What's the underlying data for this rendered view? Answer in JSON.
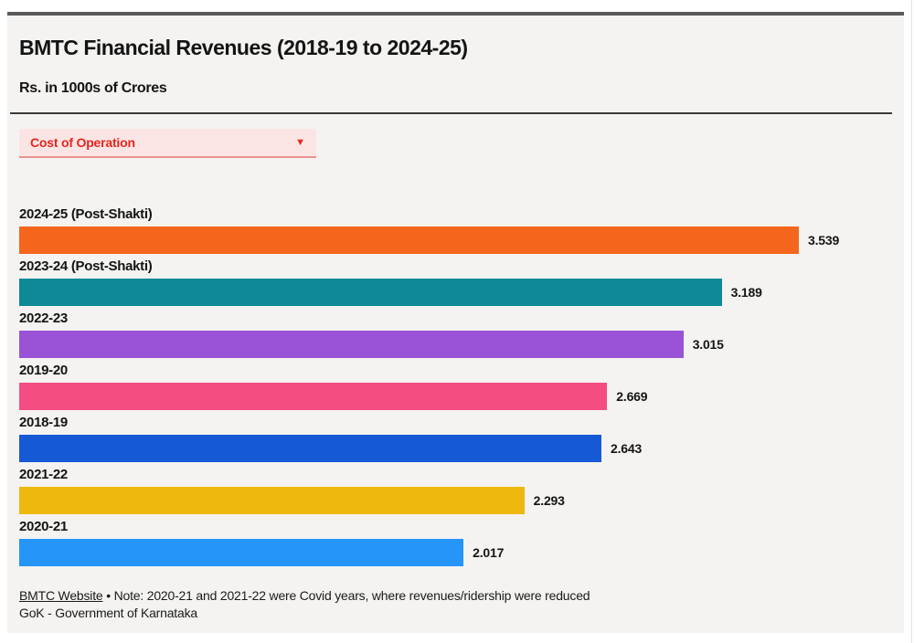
{
  "header": {
    "title": "BMTC Financial Revenues (2018-19 to 2024-25)",
    "subtitle": "Rs. in 1000s of Crores"
  },
  "dropdown": {
    "selected": "Cost of Operation",
    "accent_color": "#e8251f",
    "background_color": "#fbe5e4"
  },
  "chart_data": {
    "type": "bar",
    "orientation": "horizontal",
    "title": "BMTC Financial Revenues (2018-19 to 2024-25)",
    "subtitle": "Rs. in 1000s of Crores",
    "metric": "Cost of Operation",
    "categories": [
      "2024-25 (Post-Shakti)",
      "2023-24 (Post-Shakti)",
      "2022-23",
      "2019-20",
      "2018-19",
      "2021-22",
      "2020-21"
    ],
    "values": [
      3.539,
      3.189,
      3.015,
      2.669,
      2.643,
      2.293,
      2.017
    ],
    "value_labels": [
      "3.539",
      "3.189",
      "3.015",
      "2.669",
      "2.643",
      "2.293",
      "2.017"
    ],
    "colors": [
      "#f4661c",
      "#0e8a96",
      "#9a52d6",
      "#f34d82",
      "#1659d6",
      "#efb80e",
      "#2595f9"
    ],
    "xlim": [
      0,
      3.539
    ],
    "grid": false,
    "legend": "none",
    "category_label_position": "above-bar",
    "value_label_position": "right-of-bar"
  },
  "footer": {
    "source_link": "BMTC Website",
    "separator": "•",
    "note": "Note: 2020-21 and 2021-22 were Covid years, where revenues/ridership were reduced",
    "attribution": "GoK - Government of Karnataka"
  }
}
